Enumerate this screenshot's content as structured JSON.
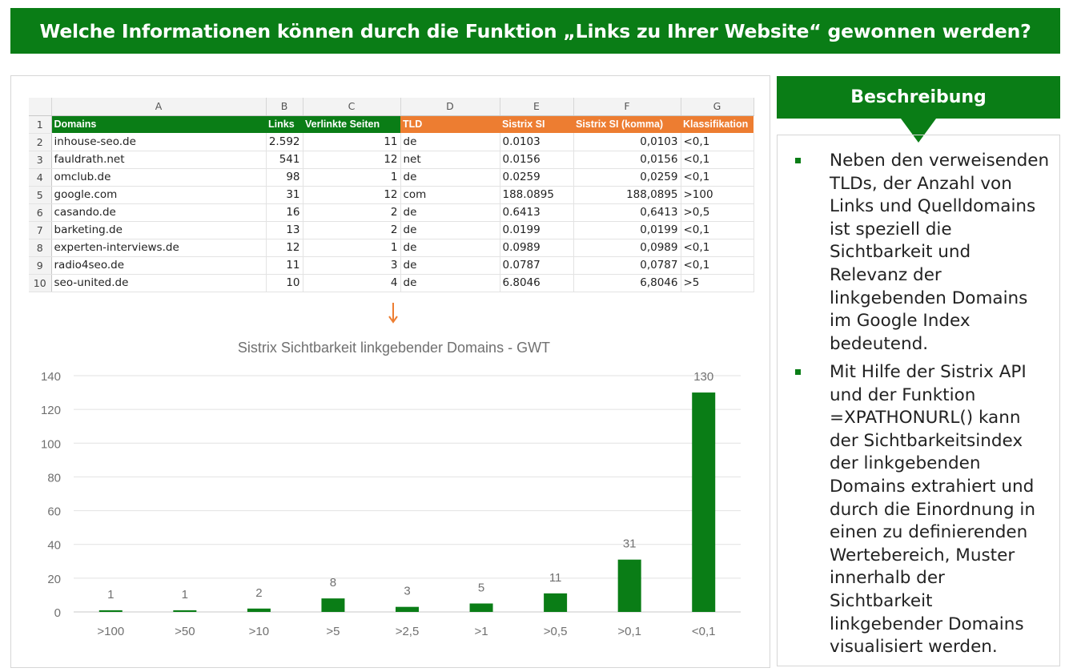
{
  "header": {
    "title": "Welche Informationen können durch die Funktion „Links zu Ihrer Website“ gewonnen werden?"
  },
  "spreadsheet": {
    "column_letters": [
      "A",
      "B",
      "C",
      "D",
      "E",
      "F",
      "G"
    ],
    "headers": [
      "Domains",
      "Links",
      "Verlinkte Seiten",
      "TLD",
      "Sistrix SI",
      "Sistrix SI (komma)",
      "Klassifikation"
    ],
    "rows": [
      {
        "n": "2",
        "domain": "inhouse-seo.de",
        "links": "2.592",
        "pages": "11",
        "tld": "de",
        "si": "0.0103",
        "si_komma": "0,0103",
        "klass": "<0,1"
      },
      {
        "n": "3",
        "domain": "fauldrath.net",
        "links": "541",
        "pages": "12",
        "tld": "net",
        "si": "0.0156",
        "si_komma": "0,0156",
        "klass": "<0,1"
      },
      {
        "n": "4",
        "domain": "omclub.de",
        "links": "98",
        "pages": "1",
        "tld": "de",
        "si": "0.0259",
        "si_komma": "0,0259",
        "klass": "<0,1"
      },
      {
        "n": "5",
        "domain": "google.com",
        "links": "31",
        "pages": "12",
        "tld": "com",
        "si": "188.0895",
        "si_komma": "188,0895",
        "klass": ">100"
      },
      {
        "n": "6",
        "domain": "casando.de",
        "links": "16",
        "pages": "2",
        "tld": "de",
        "si": "0.6413",
        "si_komma": "0,6413",
        "klass": ">0,5"
      },
      {
        "n": "7",
        "domain": "barketing.de",
        "links": "13",
        "pages": "2",
        "tld": "de",
        "si": "0.0199",
        "si_komma": "0,0199",
        "klass": "<0,1"
      },
      {
        "n": "8",
        "domain": "experten-interviews.de",
        "links": "12",
        "pages": "1",
        "tld": "de",
        "si": "0.0989",
        "si_komma": "0,0989",
        "klass": "<0,1"
      },
      {
        "n": "9",
        "domain": "radio4seo.de",
        "links": "11",
        "pages": "3",
        "tld": "de",
        "si": "0.0787",
        "si_komma": "0,0787",
        "klass": "<0,1"
      },
      {
        "n": "10",
        "domain": "seo-united.de",
        "links": "10",
        "pages": "4",
        "tld": "de",
        "si": "6.8046",
        "si_komma": "6,8046",
        "klass": ">5"
      }
    ]
  },
  "chart_data": {
    "type": "bar",
    "title": "Sistrix Sichtbarkeit linkgebender Domains - GWT",
    "categories": [
      ">100",
      ">50",
      ">10",
      ">5",
      ">2,5",
      ">1",
      ">0,5",
      ">0,1",
      "<0,1"
    ],
    "values": [
      1,
      1,
      2,
      8,
      3,
      5,
      11,
      31,
      130
    ],
    "ylim": [
      0,
      140
    ],
    "yticks": [
      0,
      20,
      40,
      60,
      80,
      100,
      120,
      140
    ],
    "grid": true,
    "legend": "none",
    "bar_color": "#0a7d16"
  },
  "description": {
    "title": "Beschreibung",
    "bullets": [
      "Neben den verweisenden TLDs, der Anzahl von Links und Quelldomains ist speziell die Sichtbarkeit und Relevanz der linkgebenden Domains im Google Index bedeutend.",
      "Mit Hilfe der Sistrix API und der Funktion =XPATHONURL() kann der Sichtbarkeitsindex der linkgebenden Domains extrahiert und durch die Einordnung in einen zu definierenden Wertebereich, Muster innerhalb der Sichtbarkeit linkgebender Domains visualisiert werden."
    ]
  }
}
